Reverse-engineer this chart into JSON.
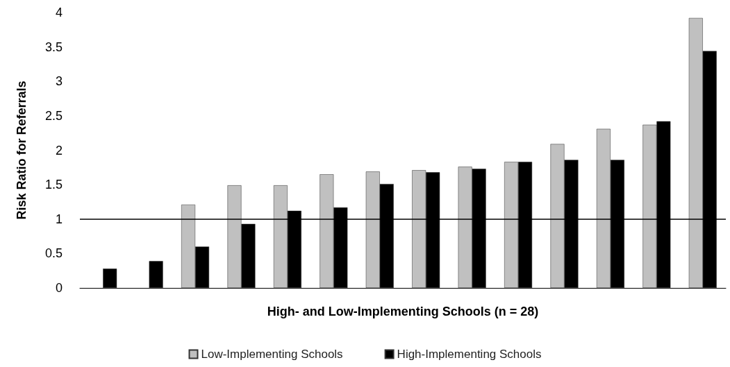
{
  "chart_data": {
    "type": "bar",
    "xlabel": "High- and Low-Implementing Schools (n = 28)",
    "ylabel": "Risk Ratio for Referrals",
    "categories": [
      null,
      null,
      null,
      null,
      null,
      null,
      null,
      null,
      null,
      null,
      null,
      null,
      null,
      null
    ],
    "series": [
      {
        "name": "Low-Implementing Schools",
        "color": "#c0c0c0",
        "values": [
          null,
          null,
          1.21,
          1.49,
          1.49,
          1.65,
          1.69,
          1.71,
          1.76,
          1.83,
          2.09,
          2.31,
          2.37,
          3.92
        ]
      },
      {
        "name": "High-Implementing Schools",
        "color": "#000000",
        "values": [
          0.28,
          0.39,
          0.6,
          0.93,
          1.12,
          1.17,
          1.51,
          1.68,
          1.73,
          1.83,
          1.86,
          1.86,
          2.42,
          3.44
        ]
      }
    ],
    "ylim": [
      0,
      4
    ],
    "yticks": [
      0,
      0.5,
      1,
      1.5,
      2,
      2.5,
      3,
      3.5,
      4
    ],
    "grid": false,
    "legend": "bottom",
    "ref_lines": [
      {
        "axis": "y",
        "value": 1,
        "color": "#000000"
      }
    ]
  }
}
